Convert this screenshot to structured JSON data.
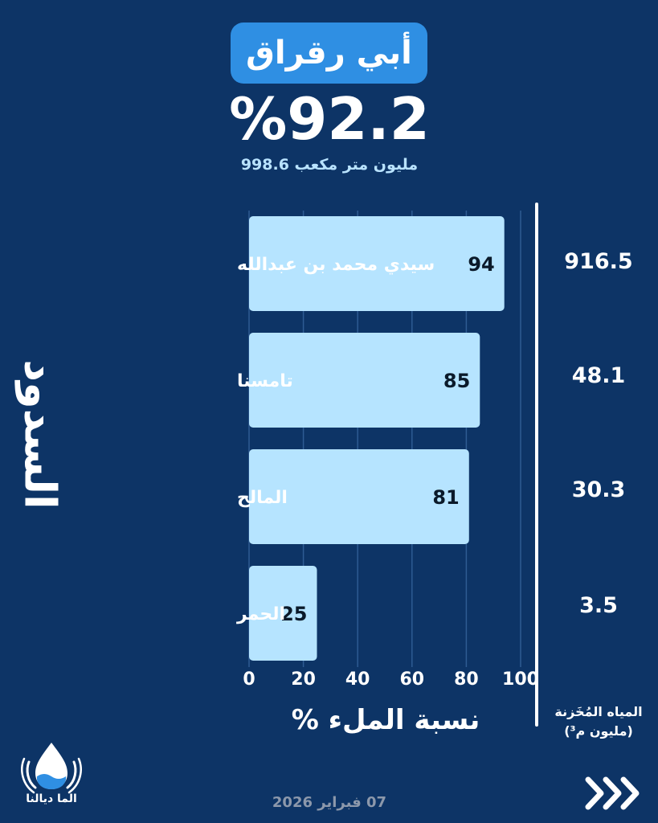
{
  "header": {
    "title": "أبي رقراق",
    "fill_percent": "%92.2",
    "volume": "998.6 مليون متر مكعب"
  },
  "sidebar_title": "السدود",
  "chart_data": {
    "type": "bar",
    "orientation": "horizontal",
    "categories": [
      "سيدي محمد بن عبدالله",
      "تامسنا",
      "المالح",
      "الحمر"
    ],
    "values": [
      94,
      85,
      81,
      25
    ],
    "xlabel": "نسبة الملء %",
    "xlim": [
      0,
      100
    ],
    "xticks": [
      0,
      20,
      40,
      60,
      80,
      100
    ],
    "grid": true,
    "bar_color": "#b6e4ff"
  },
  "stored_water": {
    "label_line1": "المياه المُخَزنة",
    "label_line2": "(مليون م³)",
    "values": [
      "916.5",
      "48.1",
      "30.3",
      "3.5"
    ]
  },
  "footer": {
    "brand": "الما ديالنا",
    "date": "07 فبراير 2026",
    "next_icon": "triple-chevron-right-icon"
  },
  "colors": {
    "background": "#0d3466",
    "title_pill": "#2f8fe3",
    "bar": "#b6e4ff",
    "volume_text": "#b9e3ff",
    "date_text": "#8c98ab"
  }
}
